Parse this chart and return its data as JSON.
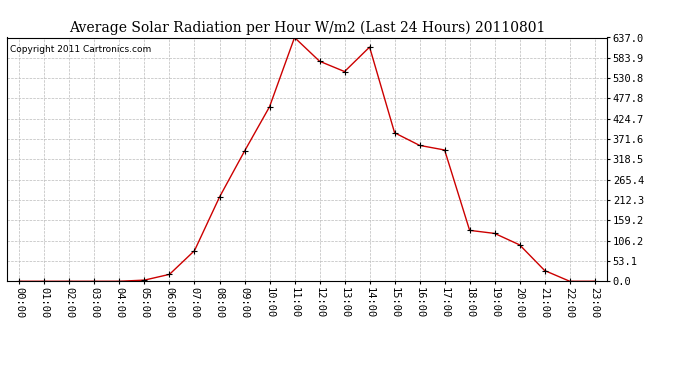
{
  "title": "Average Solar Radiation per Hour W/m2 (Last 24 Hours) 20110801",
  "copyright": "Copyright 2011 Cartronics.com",
  "hours": [
    0,
    1,
    2,
    3,
    4,
    5,
    6,
    7,
    8,
    9,
    10,
    11,
    12,
    13,
    14,
    15,
    16,
    17,
    18,
    19,
    20,
    21,
    22,
    23
  ],
  "hour_labels": [
    "00:00",
    "01:00",
    "02:00",
    "03:00",
    "04:00",
    "05:00",
    "06:00",
    "07:00",
    "08:00",
    "09:00",
    "10:00",
    "11:00",
    "12:00",
    "13:00",
    "14:00",
    "15:00",
    "16:00",
    "17:00",
    "18:00",
    "19:00",
    "20:00",
    "21:00",
    "22:00",
    "23:00"
  ],
  "values": [
    0.0,
    0.0,
    0.0,
    0.0,
    0.0,
    3.0,
    18.0,
    80.0,
    220.0,
    340.0,
    456.0,
    637.0,
    575.0,
    548.0,
    612.0,
    388.0,
    355.0,
    343.0,
    133.0,
    125.0,
    95.0,
    28.0,
    0.0,
    0.0
  ],
  "line_color": "#cc0000",
  "marker": "+",
  "marker_color": "#000000",
  "bg_color": "#ffffff",
  "grid_color": "#bbbbbb",
  "title_fontsize": 10,
  "copyright_fontsize": 6.5,
  "tick_fontsize": 7.5,
  "ytick_labels": [
    "0.0",
    "53.1",
    "106.2",
    "159.2",
    "212.3",
    "265.4",
    "318.5",
    "371.6",
    "424.7",
    "477.8",
    "530.8",
    "583.9",
    "637.0"
  ],
  "ytick_values": [
    0.0,
    53.1,
    106.2,
    159.2,
    212.3,
    265.4,
    318.5,
    371.6,
    424.7,
    477.8,
    530.8,
    583.9,
    637.0
  ],
  "ymax": 637.0,
  "ymin": 0.0
}
